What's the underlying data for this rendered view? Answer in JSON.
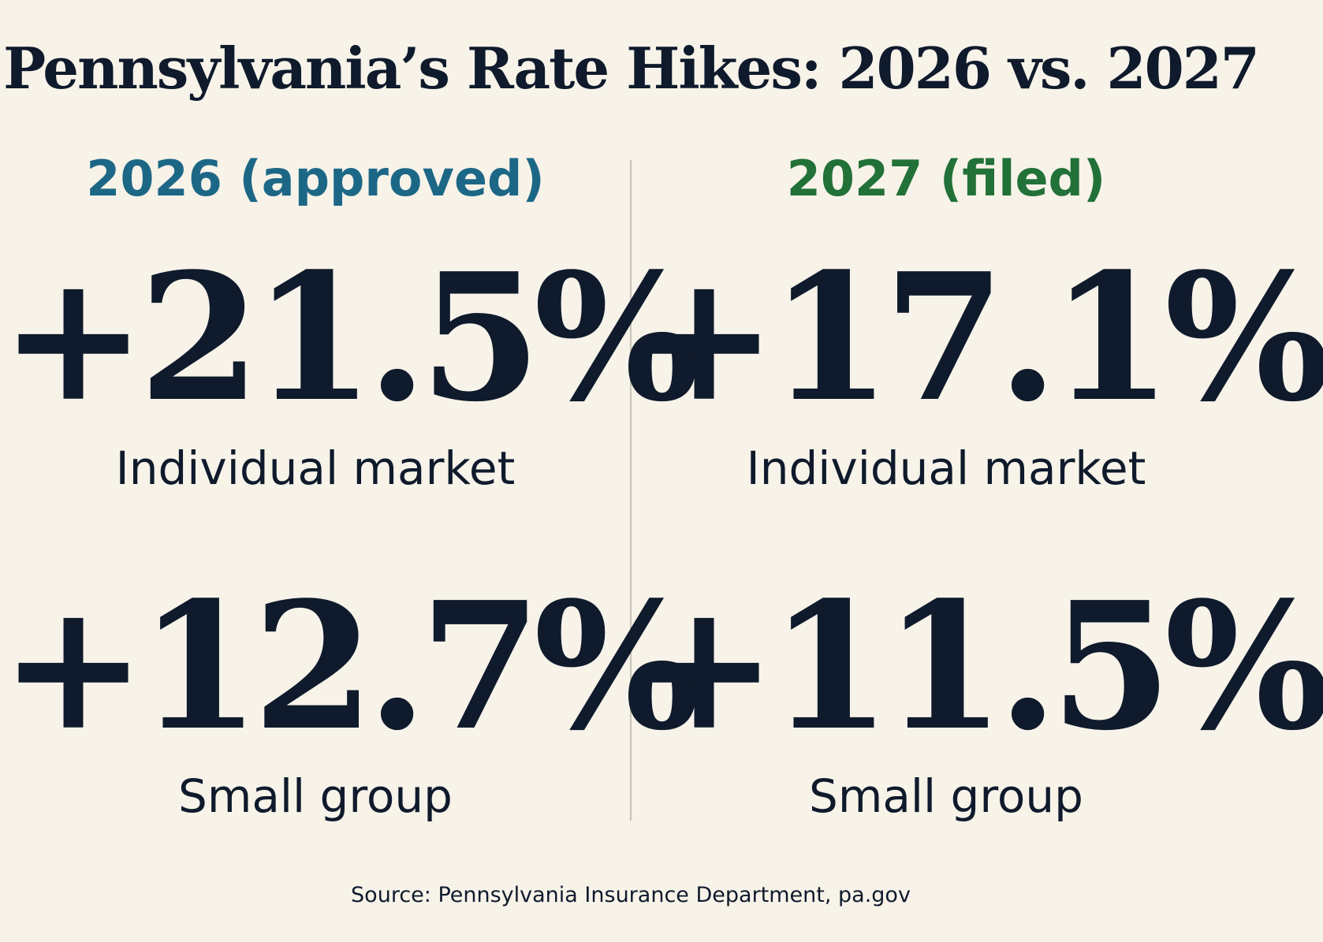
{
  "title": "Pennsylvania’s Rate Hikes: 2026 vs. 2027",
  "colors": {
    "background": "#f7f3e9",
    "text": "#0f1a2c",
    "teal_heading": "#1d6786",
    "green_heading": "#227138",
    "divider": "#c9c4b8"
  },
  "columns": [
    {
      "heading": "2026 (approved)",
      "stats": [
        {
          "value": "+21.5%",
          "label": "Individual market"
        },
        {
          "value": "+12.7%",
          "label": "Small group"
        }
      ]
    },
    {
      "heading": "2027 (filed)",
      "stats": [
        {
          "value": "+17.1%",
          "label": "Individual market"
        },
        {
          "value": "+11.5%",
          "label": "Small group"
        }
      ]
    }
  ],
  "source": "Source: Pennsylvania Insurance Department, pa.gov"
}
